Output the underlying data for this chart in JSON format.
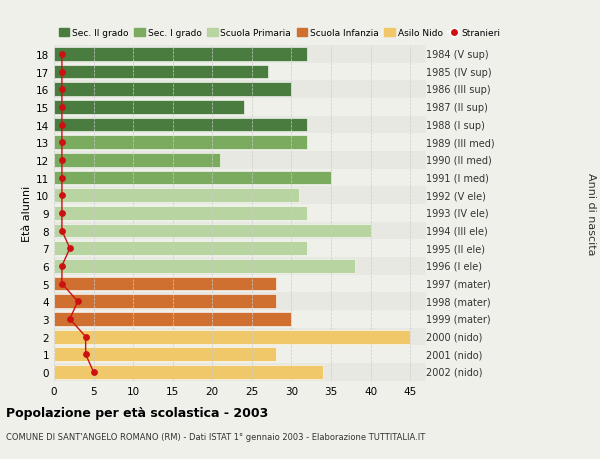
{
  "ages": [
    18,
    17,
    16,
    15,
    14,
    13,
    12,
    11,
    10,
    9,
    8,
    7,
    6,
    5,
    4,
    3,
    2,
    1,
    0
  ],
  "bar_values": [
    32,
    27,
    30,
    24,
    32,
    32,
    21,
    35,
    31,
    32,
    40,
    32,
    38,
    28,
    28,
    30,
    45,
    28,
    34
  ],
  "bar_colors": [
    "#4a7c3f",
    "#4a7c3f",
    "#4a7c3f",
    "#4a7c3f",
    "#4a7c3f",
    "#7aab5e",
    "#7aab5e",
    "#7aab5e",
    "#b8d4a0",
    "#b8d4a0",
    "#b8d4a0",
    "#b8d4a0",
    "#b8d4a0",
    "#d07030",
    "#d07030",
    "#d07030",
    "#f0c86a",
    "#f0c86a",
    "#f0c86a"
  ],
  "right_labels": [
    "1984 (V sup)",
    "1985 (IV sup)",
    "1986 (III sup)",
    "1987 (II sup)",
    "1988 (I sup)",
    "1989 (III med)",
    "1990 (II med)",
    "1991 (I med)",
    "1992 (V ele)",
    "1993 (IV ele)",
    "1994 (III ele)",
    "1995 (II ele)",
    "1996 (I ele)",
    "1997 (mater)",
    "1998 (mater)",
    "1999 (mater)",
    "2000 (nido)",
    "2001 (nido)",
    "2002 (nido)"
  ],
  "stranieri_x": [
    1,
    1,
    1,
    1,
    1,
    1,
    1,
    1,
    1,
    1,
    1,
    2,
    1,
    1,
    3,
    2,
    4,
    4,
    5
  ],
  "legend_labels": [
    "Sec. II grado",
    "Sec. I grado",
    "Scuola Primaria",
    "Scuola Infanzia",
    "Asilo Nido",
    "Stranieri"
  ],
  "legend_colors": [
    "#4a7c3f",
    "#7aab5e",
    "#b8d4a0",
    "#d07030",
    "#f0c86a",
    "#cc1111"
  ],
  "title": "Popolazione per età scolastica - 2003",
  "subtitle": "COMUNE DI SANT'ANGELO ROMANO (RM) - Dati ISTAT 1° gennaio 2003 - Elaborazione TUTTITALIA.IT",
  "ylabel_left": "Età alunni",
  "ylabel_right": "Anni di nascita",
  "xlim": [
    0,
    47
  ],
  "bg_color": "#f0f0eb",
  "row_alt_color": "#e8e8e2",
  "grid_color": "#cccccc"
}
